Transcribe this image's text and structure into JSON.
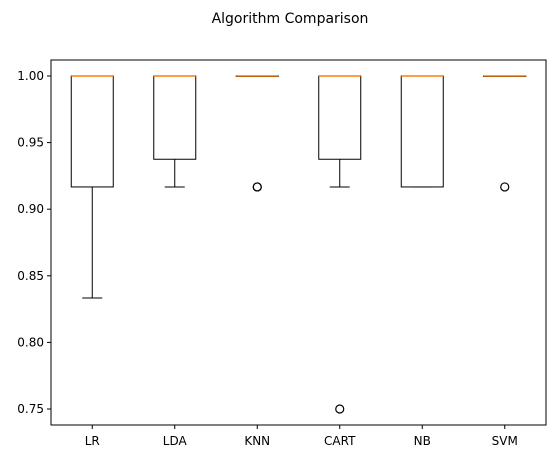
{
  "chart_data": {
    "type": "box",
    "title": "Algorithm Comparison",
    "xlabel": "",
    "ylabel": "",
    "ylim": [
      0.738,
      1.012
    ],
    "yticks": [
      "1.00",
      "0.95",
      "0.90",
      "0.85",
      "0.80",
      "0.75"
    ],
    "ytick_values": [
      1.0,
      0.95,
      0.9,
      0.85,
      0.8,
      0.75
    ],
    "categories": [
      "LR",
      "LDA",
      "KNN",
      "CART",
      "NB",
      "SVM"
    ],
    "boxes": [
      {
        "name": "LR",
        "whisker_low": 0.8333,
        "q1": 0.9167,
        "median": 1.0,
        "q3": 1.0,
        "whisker_high": 1.0,
        "outliers": []
      },
      {
        "name": "LDA",
        "whisker_low": 0.9167,
        "q1": 0.9375,
        "median": 1.0,
        "q3": 1.0,
        "whisker_high": 1.0,
        "outliers": []
      },
      {
        "name": "KNN",
        "whisker_low": 1.0,
        "q1": 1.0,
        "median": 1.0,
        "q3": 1.0,
        "whisker_high": 1.0,
        "outliers": [
          0.9167,
          0.9167
        ]
      },
      {
        "name": "CART",
        "whisker_low": 0.9167,
        "q1": 0.9375,
        "median": 1.0,
        "q3": 1.0,
        "whisker_high": 1.0,
        "outliers": [
          0.75
        ]
      },
      {
        "name": "NB",
        "whisker_low": 0.9167,
        "q1": 0.9167,
        "median": 1.0,
        "q3": 1.0,
        "whisker_high": 1.0,
        "outliers": []
      },
      {
        "name": "SVM",
        "whisker_low": 1.0,
        "q1": 1.0,
        "median": 1.0,
        "q3": 1.0,
        "whisker_high": 1.0,
        "outliers": [
          0.9167
        ]
      }
    ],
    "colors": {
      "box": "#000000",
      "median": "#ff7f0e",
      "outlier": "#000000",
      "background": "#ffffff"
    }
  }
}
